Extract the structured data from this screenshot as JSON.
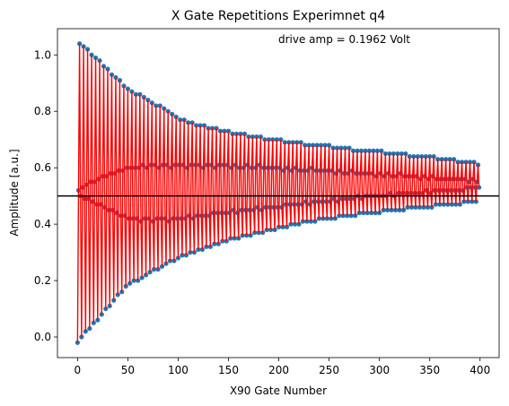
{
  "chart_data": {
    "type": "line",
    "title": "X Gate Repetitions Experimnet q4",
    "xlabel": "X90 Gate Number",
    "ylabel": "Amplitude [a.u.]",
    "annotation": "drive amp = 0.1962 Volt",
    "line_color": "#ff0000",
    "marker_color": "#1f77b4",
    "hline": {
      "value": 0.5,
      "color": "#000000"
    },
    "xlim": [
      -19.95,
      418.95
    ],
    "ylim": [
      -0.073,
      1.093
    ],
    "xticks": [
      0,
      50,
      100,
      150,
      200,
      250,
      300,
      350,
      400
    ],
    "yticks": [
      {
        "value": 0,
        "label": "0.0"
      },
      0.2,
      0.4,
      0.6,
      0.8,
      {
        "value": 1,
        "label": "1.0"
      }
    ],
    "x": [
      0,
      1,
      2,
      3,
      4,
      5,
      6,
      7,
      8,
      9,
      10,
      11,
      12,
      13,
      14,
      15,
      16,
      17,
      18,
      19,
      20,
      21,
      22,
      23,
      24,
      25,
      26,
      27,
      28,
      29,
      30,
      31,
      32,
      33,
      34,
      35,
      36,
      37,
      38,
      39,
      40,
      41,
      42,
      43,
      44,
      45,
      46,
      47,
      48,
      49,
      50,
      51,
      52,
      53,
      54,
      55,
      56,
      57,
      58,
      59,
      60,
      61,
      62,
      63,
      64,
      65,
      66,
      67,
      68,
      69,
      70,
      71,
      72,
      73,
      74,
      75,
      76,
      77,
      78,
      79,
      80,
      81,
      82,
      83,
      84,
      85,
      86,
      87,
      88,
      89,
      90,
      91,
      92,
      93,
      94,
      95,
      96,
      97,
      98,
      99,
      100,
      101,
      102,
      103,
      104,
      105,
      106,
      107,
      108,
      109,
      110,
      111,
      112,
      113,
      114,
      115,
      116,
      117,
      118,
      119,
      120,
      121,
      122,
      123,
      124,
      125,
      126,
      127,
      128,
      129,
      130,
      131,
      132,
      133,
      134,
      135,
      136,
      137,
      138,
      139,
      140,
      141,
      142,
      143,
      144,
      145,
      146,
      147,
      148,
      149,
      150,
      151,
      152,
      153,
      154,
      155,
      156,
      157,
      158,
      159,
      160,
      161,
      162,
      163,
      164,
      165,
      166,
      167,
      168,
      169,
      170,
      171,
      172,
      173,
      174,
      175,
      176,
      177,
      178,
      179,
      180,
      181,
      182,
      183,
      184,
      185,
      186,
      187,
      188,
      189,
      190,
      191,
      192,
      193,
      194,
      195,
      196,
      197,
      198,
      199,
      200,
      201,
      202,
      203,
      204,
      205,
      206,
      207,
      208,
      209,
      210,
      211,
      212,
      213,
      214,
      215,
      216,
      217,
      218,
      219,
      220,
      221,
      222,
      223,
      224,
      225,
      226,
      227,
      228,
      229,
      230,
      231,
      232,
      233,
      234,
      235,
      236,
      237,
      238,
      239,
      240,
      241,
      242,
      243,
      244,
      245,
      246,
      247,
      248,
      249,
      250,
      251,
      252,
      253,
      254,
      255,
      256,
      257,
      258,
      259,
      260,
      261,
      262,
      263,
      264,
      265,
      266,
      267,
      268,
      269,
      270,
      271,
      272,
      273,
      274,
      275,
      276,
      277,
      278,
      279,
      280,
      281,
      282,
      283,
      284,
      285,
      286,
      287,
      288,
      289,
      290,
      291,
      292,
      293,
      294,
      295,
      296,
      297,
      298,
      299,
      300,
      301,
      302,
      303,
      304,
      305,
      306,
      307,
      308,
      309,
      310,
      311,
      312,
      313,
      314,
      315,
      316,
      317,
      318,
      319,
      320,
      321,
      322,
      323,
      324,
      325,
      326,
      327,
      328,
      329,
      330,
      331,
      332,
      333,
      334,
      335,
      336,
      337,
      338,
      339,
      340,
      341,
      342,
      343,
      344,
      345,
      346,
      347,
      348,
      349,
      350,
      351,
      352,
      353,
      354,
      355,
      356,
      357,
      358,
      359,
      360,
      361,
      362,
      363,
      364,
      365,
      366,
      367,
      368,
      369,
      370,
      371,
      372,
      373,
      374,
      375,
      376,
      377,
      378,
      379,
      380,
      381,
      382,
      383,
      384,
      385,
      386,
      387,
      388,
      389,
      390,
      391,
      392,
      393,
      394,
      395,
      396,
      397,
      398,
      399
    ],
    "values": [
      -0.02,
      0.52,
      1.04,
      0.5,
      0.0,
      0.53,
      1.03,
      0.49,
      0.02,
      0.54,
      1.02,
      0.49,
      0.03,
      0.55,
      1.0,
      0.48,
      0.05,
      0.55,
      0.99,
      0.47,
      0.06,
      0.56,
      0.98,
      0.47,
      0.08,
      0.57,
      0.96,
      0.46,
      0.1,
      0.57,
      0.95,
      0.45,
      0.11,
      0.58,
      0.93,
      0.45,
      0.13,
      0.58,
      0.92,
      0.44,
      0.15,
      0.59,
      0.91,
      0.43,
      0.16,
      0.59,
      0.89,
      0.43,
      0.18,
      0.6,
      0.88,
      0.42,
      0.19,
      0.6,
      0.87,
      0.42,
      0.2,
      0.6,
      0.86,
      0.42,
      0.2,
      0.6,
      0.86,
      0.41,
      0.21,
      0.61,
      0.85,
      0.42,
      0.22,
      0.6,
      0.84,
      0.42,
      0.23,
      0.61,
      0.83,
      0.41,
      0.24,
      0.61,
      0.82,
      0.42,
      0.24,
      0.6,
      0.82,
      0.42,
      0.25,
      0.61,
      0.81,
      0.42,
      0.26,
      0.61,
      0.8,
      0.41,
      0.27,
      0.6,
      0.79,
      0.42,
      0.27,
      0.61,
      0.78,
      0.42,
      0.28,
      0.61,
      0.77,
      0.42,
      0.29,
      0.61,
      0.77,
      0.42,
      0.29,
      0.6,
      0.76,
      0.43,
      0.3,
      0.61,
      0.76,
      0.42,
      0.3,
      0.61,
      0.75,
      0.43,
      0.31,
      0.61,
      0.75,
      0.43,
      0.31,
      0.6,
      0.75,
      0.43,
      0.32,
      0.61,
      0.74,
      0.43,
      0.32,
      0.61,
      0.74,
      0.44,
      0.33,
      0.6,
      0.74,
      0.44,
      0.33,
      0.61,
      0.73,
      0.44,
      0.34,
      0.61,
      0.73,
      0.44,
      0.34,
      0.61,
      0.73,
      0.44,
      0.35,
      0.6,
      0.72,
      0.45,
      0.35,
      0.61,
      0.72,
      0.44,
      0.35,
      0.6,
      0.72,
      0.45,
      0.36,
      0.6,
      0.72,
      0.45,
      0.36,
      0.61,
      0.71,
      0.45,
      0.36,
      0.6,
      0.71,
      0.45,
      0.37,
      0.6,
      0.71,
      0.46,
      0.37,
      0.61,
      0.71,
      0.45,
      0.37,
      0.6,
      0.7,
      0.46,
      0.38,
      0.6,
      0.7,
      0.46,
      0.38,
      0.6,
      0.7,
      0.46,
      0.38,
      0.6,
      0.7,
      0.46,
      0.39,
      0.6,
      0.7,
      0.46,
      0.39,
      0.59,
      0.69,
      0.47,
      0.39,
      0.6,
      0.69,
      0.47,
      0.4,
      0.59,
      0.69,
      0.47,
      0.4,
      0.6,
      0.69,
      0.47,
      0.4,
      0.59,
      0.69,
      0.47,
      0.41,
      0.59,
      0.68,
      0.48,
      0.41,
      0.59,
      0.68,
      0.47,
      0.41,
      0.6,
      0.68,
      0.48,
      0.41,
      0.59,
      0.68,
      0.48,
      0.42,
      0.59,
      0.68,
      0.48,
      0.42,
      0.59,
      0.68,
      0.48,
      0.42,
      0.59,
      0.68,
      0.48,
      0.42,
      0.59,
      0.67,
      0.49,
      0.42,
      0.58,
      0.67,
      0.48,
      0.43,
      0.59,
      0.67,
      0.49,
      0.43,
      0.58,
      0.67,
      0.49,
      0.43,
      0.58,
      0.67,
      0.49,
      0.43,
      0.59,
      0.66,
      0.49,
      0.43,
      0.58,
      0.66,
      0.5,
      0.44,
      0.58,
      0.66,
      0.49,
      0.44,
      0.58,
      0.66,
      0.5,
      0.44,
      0.58,
      0.66,
      0.5,
      0.44,
      0.58,
      0.66,
      0.5,
      0.44,
      0.57,
      0.66,
      0.5,
      0.44,
      0.58,
      0.66,
      0.5,
      0.45,
      0.57,
      0.65,
      0.5,
      0.45,
      0.58,
      0.65,
      0.51,
      0.45,
      0.57,
      0.65,
      0.5,
      0.45,
      0.57,
      0.65,
      0.51,
      0.45,
      0.58,
      0.65,
      0.51,
      0.45,
      0.57,
      0.65,
      0.51,
      0.46,
      0.57,
      0.64,
      0.51,
      0.46,
      0.57,
      0.64,
      0.51,
      0.46,
      0.57,
      0.64,
      0.51,
      0.46,
      0.56,
      0.64,
      0.51,
      0.46,
      0.57,
      0.64,
      0.52,
      0.46,
      0.56,
      0.64,
      0.51,
      0.46,
      0.57,
      0.64,
      0.52,
      0.47,
      0.56,
      0.63,
      0.52,
      0.47,
      0.56,
      0.63,
      0.52,
      0.47,
      0.56,
      0.63,
      0.52,
      0.47,
      0.56,
      0.63,
      0.52,
      0.47,
      0.56,
      0.63,
      0.52,
      0.47,
      0.56,
      0.62,
      0.52,
      0.47,
      0.56,
      0.62,
      0.52,
      0.48,
      0.56,
      0.62,
      0.53,
      0.48,
      0.55,
      0.62,
      0.53,
      0.48,
      0.56,
      0.62,
      0.53,
      0.48,
      0.55,
      0.61,
      0.53
    ]
  }
}
